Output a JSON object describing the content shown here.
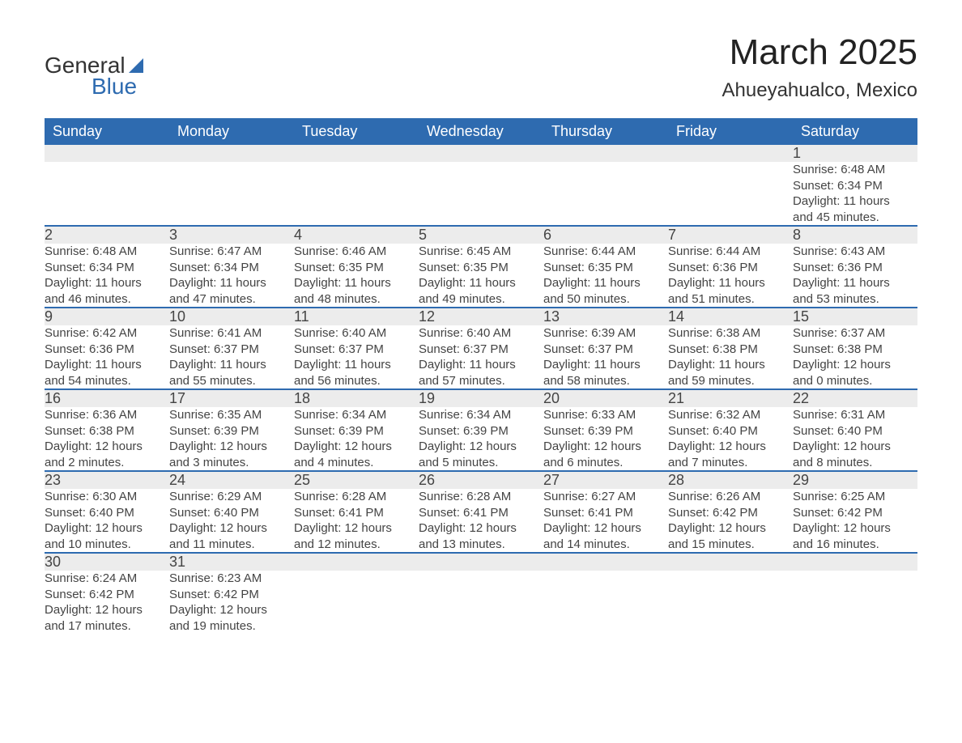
{
  "logo": {
    "general": "General",
    "blue": "Blue"
  },
  "title": "March 2025",
  "location": "Ahueyahualco, Mexico",
  "colors": {
    "header_bg": "#2e6bb0",
    "row_bg": "#ececec",
    "border": "#2e6bb0",
    "text": "#444444",
    "white": "#ffffff"
  },
  "weekdays": [
    "Sunday",
    "Monday",
    "Tuesday",
    "Wednesday",
    "Thursday",
    "Friday",
    "Saturday"
  ],
  "weeks": [
    [
      {
        "day": "",
        "sunrise": "",
        "sunset": "",
        "daylight1": "",
        "daylight2": ""
      },
      {
        "day": "",
        "sunrise": "",
        "sunset": "",
        "daylight1": "",
        "daylight2": ""
      },
      {
        "day": "",
        "sunrise": "",
        "sunset": "",
        "daylight1": "",
        "daylight2": ""
      },
      {
        "day": "",
        "sunrise": "",
        "sunset": "",
        "daylight1": "",
        "daylight2": ""
      },
      {
        "day": "",
        "sunrise": "",
        "sunset": "",
        "daylight1": "",
        "daylight2": ""
      },
      {
        "day": "",
        "sunrise": "",
        "sunset": "",
        "daylight1": "",
        "daylight2": ""
      },
      {
        "day": "1",
        "sunrise": "Sunrise: 6:48 AM",
        "sunset": "Sunset: 6:34 PM",
        "daylight1": "Daylight: 11 hours",
        "daylight2": "and 45 minutes."
      }
    ],
    [
      {
        "day": "2",
        "sunrise": "Sunrise: 6:48 AM",
        "sunset": "Sunset: 6:34 PM",
        "daylight1": "Daylight: 11 hours",
        "daylight2": "and 46 minutes."
      },
      {
        "day": "3",
        "sunrise": "Sunrise: 6:47 AM",
        "sunset": "Sunset: 6:34 PM",
        "daylight1": "Daylight: 11 hours",
        "daylight2": "and 47 minutes."
      },
      {
        "day": "4",
        "sunrise": "Sunrise: 6:46 AM",
        "sunset": "Sunset: 6:35 PM",
        "daylight1": "Daylight: 11 hours",
        "daylight2": "and 48 minutes."
      },
      {
        "day": "5",
        "sunrise": "Sunrise: 6:45 AM",
        "sunset": "Sunset: 6:35 PM",
        "daylight1": "Daylight: 11 hours",
        "daylight2": "and 49 minutes."
      },
      {
        "day": "6",
        "sunrise": "Sunrise: 6:44 AM",
        "sunset": "Sunset: 6:35 PM",
        "daylight1": "Daylight: 11 hours",
        "daylight2": "and 50 minutes."
      },
      {
        "day": "7",
        "sunrise": "Sunrise: 6:44 AM",
        "sunset": "Sunset: 6:36 PM",
        "daylight1": "Daylight: 11 hours",
        "daylight2": "and 51 minutes."
      },
      {
        "day": "8",
        "sunrise": "Sunrise: 6:43 AM",
        "sunset": "Sunset: 6:36 PM",
        "daylight1": "Daylight: 11 hours",
        "daylight2": "and 53 minutes."
      }
    ],
    [
      {
        "day": "9",
        "sunrise": "Sunrise: 6:42 AM",
        "sunset": "Sunset: 6:36 PM",
        "daylight1": "Daylight: 11 hours",
        "daylight2": "and 54 minutes."
      },
      {
        "day": "10",
        "sunrise": "Sunrise: 6:41 AM",
        "sunset": "Sunset: 6:37 PM",
        "daylight1": "Daylight: 11 hours",
        "daylight2": "and 55 minutes."
      },
      {
        "day": "11",
        "sunrise": "Sunrise: 6:40 AM",
        "sunset": "Sunset: 6:37 PM",
        "daylight1": "Daylight: 11 hours",
        "daylight2": "and 56 minutes."
      },
      {
        "day": "12",
        "sunrise": "Sunrise: 6:40 AM",
        "sunset": "Sunset: 6:37 PM",
        "daylight1": "Daylight: 11 hours",
        "daylight2": "and 57 minutes."
      },
      {
        "day": "13",
        "sunrise": "Sunrise: 6:39 AM",
        "sunset": "Sunset: 6:37 PM",
        "daylight1": "Daylight: 11 hours",
        "daylight2": "and 58 minutes."
      },
      {
        "day": "14",
        "sunrise": "Sunrise: 6:38 AM",
        "sunset": "Sunset: 6:38 PM",
        "daylight1": "Daylight: 11 hours",
        "daylight2": "and 59 minutes."
      },
      {
        "day": "15",
        "sunrise": "Sunrise: 6:37 AM",
        "sunset": "Sunset: 6:38 PM",
        "daylight1": "Daylight: 12 hours",
        "daylight2": "and 0 minutes."
      }
    ],
    [
      {
        "day": "16",
        "sunrise": "Sunrise: 6:36 AM",
        "sunset": "Sunset: 6:38 PM",
        "daylight1": "Daylight: 12 hours",
        "daylight2": "and 2 minutes."
      },
      {
        "day": "17",
        "sunrise": "Sunrise: 6:35 AM",
        "sunset": "Sunset: 6:39 PM",
        "daylight1": "Daylight: 12 hours",
        "daylight2": "and 3 minutes."
      },
      {
        "day": "18",
        "sunrise": "Sunrise: 6:34 AM",
        "sunset": "Sunset: 6:39 PM",
        "daylight1": "Daylight: 12 hours",
        "daylight2": "and 4 minutes."
      },
      {
        "day": "19",
        "sunrise": "Sunrise: 6:34 AM",
        "sunset": "Sunset: 6:39 PM",
        "daylight1": "Daylight: 12 hours",
        "daylight2": "and 5 minutes."
      },
      {
        "day": "20",
        "sunrise": "Sunrise: 6:33 AM",
        "sunset": "Sunset: 6:39 PM",
        "daylight1": "Daylight: 12 hours",
        "daylight2": "and 6 minutes."
      },
      {
        "day": "21",
        "sunrise": "Sunrise: 6:32 AM",
        "sunset": "Sunset: 6:40 PM",
        "daylight1": "Daylight: 12 hours",
        "daylight2": "and 7 minutes."
      },
      {
        "day": "22",
        "sunrise": "Sunrise: 6:31 AM",
        "sunset": "Sunset: 6:40 PM",
        "daylight1": "Daylight: 12 hours",
        "daylight2": "and 8 minutes."
      }
    ],
    [
      {
        "day": "23",
        "sunrise": "Sunrise: 6:30 AM",
        "sunset": "Sunset: 6:40 PM",
        "daylight1": "Daylight: 12 hours",
        "daylight2": "and 10 minutes."
      },
      {
        "day": "24",
        "sunrise": "Sunrise: 6:29 AM",
        "sunset": "Sunset: 6:40 PM",
        "daylight1": "Daylight: 12 hours",
        "daylight2": "and 11 minutes."
      },
      {
        "day": "25",
        "sunrise": "Sunrise: 6:28 AM",
        "sunset": "Sunset: 6:41 PM",
        "daylight1": "Daylight: 12 hours",
        "daylight2": "and 12 minutes."
      },
      {
        "day": "26",
        "sunrise": "Sunrise: 6:28 AM",
        "sunset": "Sunset: 6:41 PM",
        "daylight1": "Daylight: 12 hours",
        "daylight2": "and 13 minutes."
      },
      {
        "day": "27",
        "sunrise": "Sunrise: 6:27 AM",
        "sunset": "Sunset: 6:41 PM",
        "daylight1": "Daylight: 12 hours",
        "daylight2": "and 14 minutes."
      },
      {
        "day": "28",
        "sunrise": "Sunrise: 6:26 AM",
        "sunset": "Sunset: 6:42 PM",
        "daylight1": "Daylight: 12 hours",
        "daylight2": "and 15 minutes."
      },
      {
        "day": "29",
        "sunrise": "Sunrise: 6:25 AM",
        "sunset": "Sunset: 6:42 PM",
        "daylight1": "Daylight: 12 hours",
        "daylight2": "and 16 minutes."
      }
    ],
    [
      {
        "day": "30",
        "sunrise": "Sunrise: 6:24 AM",
        "sunset": "Sunset: 6:42 PM",
        "daylight1": "Daylight: 12 hours",
        "daylight2": "and 17 minutes."
      },
      {
        "day": "31",
        "sunrise": "Sunrise: 6:23 AM",
        "sunset": "Sunset: 6:42 PM",
        "daylight1": "Daylight: 12 hours",
        "daylight2": "and 19 minutes."
      },
      {
        "day": "",
        "sunrise": "",
        "sunset": "",
        "daylight1": "",
        "daylight2": ""
      },
      {
        "day": "",
        "sunrise": "",
        "sunset": "",
        "daylight1": "",
        "daylight2": ""
      },
      {
        "day": "",
        "sunrise": "",
        "sunset": "",
        "daylight1": "",
        "daylight2": ""
      },
      {
        "day": "",
        "sunrise": "",
        "sunset": "",
        "daylight1": "",
        "daylight2": ""
      },
      {
        "day": "",
        "sunrise": "",
        "sunset": "",
        "daylight1": "",
        "daylight2": ""
      }
    ]
  ]
}
